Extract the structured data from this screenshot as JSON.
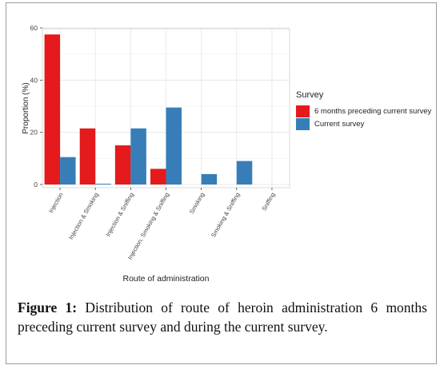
{
  "chart_data": {
    "type": "bar",
    "xlabel": "Route of administration",
    "ylabel": "Proportion (%)",
    "ylim": [
      0,
      60
    ],
    "yticks": [
      "0",
      "20",
      "40",
      "60"
    ],
    "grid": true,
    "legend": {
      "title": "Survey",
      "placement": "right"
    },
    "categories": [
      "Injection",
      "Injection & Smoking",
      "Injection & Sniffing",
      "Injection, Smoking & Sniffing",
      "Smoking",
      "Smoking & Sniffing",
      "Sniffing"
    ],
    "series": [
      {
        "name": "6 months preceding current survey",
        "color": "#e41a1c",
        "values": [
          57.5,
          21.5,
          15,
          6,
          0,
          0,
          0
        ]
      },
      {
        "name": "Current survey",
        "color": "#377eb8",
        "values": [
          10.5,
          0.3,
          21.5,
          29.5,
          4,
          9,
          0
        ]
      }
    ]
  },
  "caption": {
    "label": "Figure 1:",
    "text": " Distribution of route of heroin administration 6 months preceding current survey and during the current survey."
  }
}
